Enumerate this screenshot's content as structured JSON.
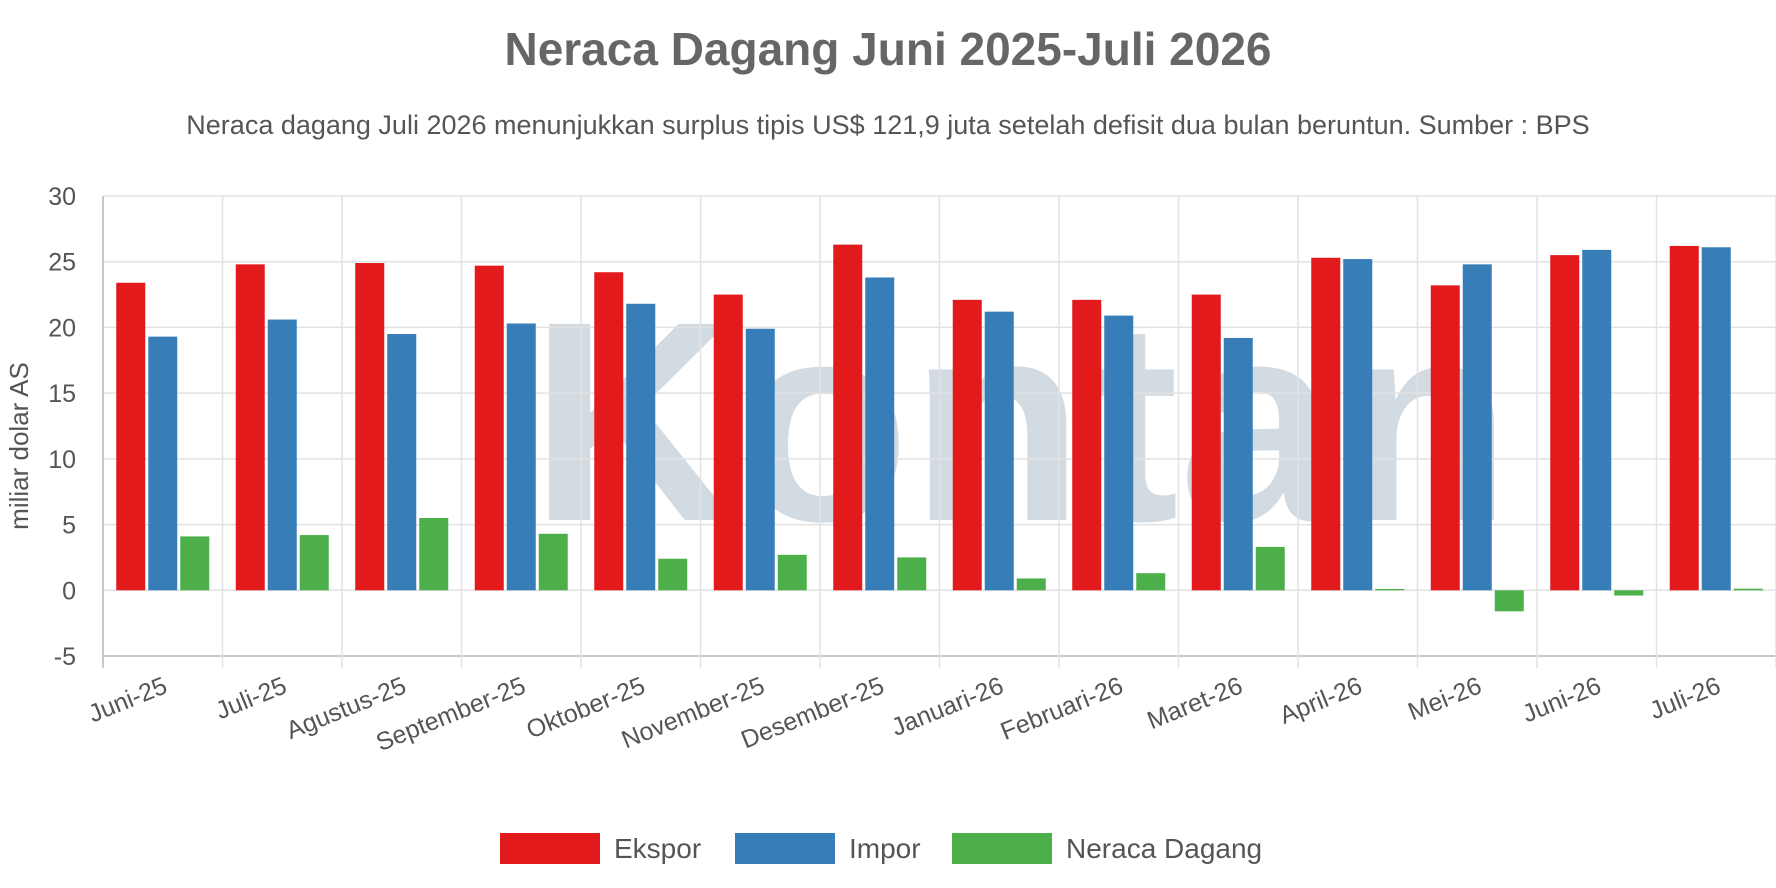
{
  "watermark_text": "Kontan",
  "chart_data": {
    "type": "bar",
    "title": "Neraca Dagang Juni 2025-Juli 2026",
    "subtitle": "Neraca dagang Juli 2026 menunjukkan surplus tipis US$ 121,9 juta setelah defisit dua bulan beruntun. Sumber : BPS",
    "xlabel": "",
    "ylabel": "miliar dolar AS",
    "ylim": [
      -5,
      30
    ],
    "yticks": [
      "30",
      "25",
      "20",
      "15",
      "10",
      "5",
      "0",
      "-5"
    ],
    "grid": true,
    "legend_position": "bottom",
    "categories": [
      "Juni-25",
      "Juli-25",
      "Agustus-25",
      "September-25",
      "Oktober-25",
      "November-25",
      "Desember-25",
      "Januari-26",
      "Februari-26",
      "Maret-26",
      "April-26",
      "Mei-26",
      "Juni-26",
      "Juli-26"
    ],
    "series": [
      {
        "name": "Ekspor",
        "color": "#e31a1c",
        "values": [
          23.4,
          24.8,
          24.9,
          24.7,
          24.2,
          22.5,
          26.3,
          22.1,
          22.1,
          22.5,
          25.3,
          23.2,
          25.5,
          26.2
        ]
      },
      {
        "name": "Impor",
        "color": "#377eb8",
        "values": [
          19.3,
          20.6,
          19.5,
          20.3,
          21.8,
          19.9,
          23.8,
          21.2,
          20.9,
          19.2,
          25.2,
          24.8,
          25.9,
          26.1
        ]
      },
      {
        "name": "Neraca Dagang",
        "color": "#4daf4a",
        "values": [
          4.1,
          4.2,
          5.5,
          4.3,
          2.4,
          2.7,
          2.5,
          0.9,
          1.3,
          3.3,
          0.1,
          -1.6,
          -0.4,
          0.1219
        ]
      }
    ]
  }
}
